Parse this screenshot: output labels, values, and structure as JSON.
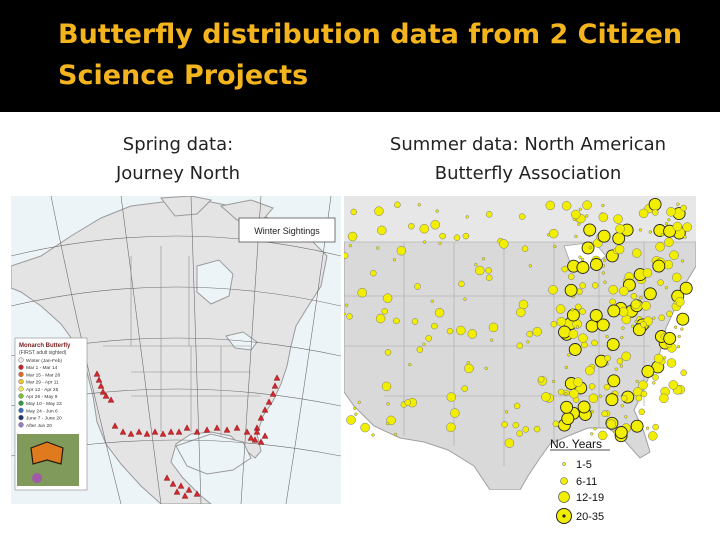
{
  "slide": {
    "title": "Butterfly distribution data from 2 Citizen Science Projects",
    "subtitle_left": "Spring data:\nJourney North",
    "subtitle_right": "Summer data: North American Butterfly Association"
  },
  "spring_map": {
    "callout": "Winter Sightings",
    "legend_title_main": "Monarch Butterfly",
    "legend_title_sub": "(FIRST adult sighted)",
    "legend_items": [
      {
        "label": "Winter (Jan-Feb)",
        "color": "#e8e8e8"
      },
      {
        "label": "Mar 1 - Mar 14",
        "color": "#c0282d"
      },
      {
        "label": "Mar 15 - Mar 28",
        "color": "#e06a2a"
      },
      {
        "label": "Mar 29 - Apr 11",
        "color": "#f2c230"
      },
      {
        "label": "Apr 12 - Apr 25",
        "color": "#f5e35a"
      },
      {
        "label": "Apr 26 - May 9",
        "color": "#7bbf3f"
      },
      {
        "label": "May 10 - May 23",
        "color": "#2e9a46"
      },
      {
        "label": "May 24 - Jun 6",
        "color": "#3a6fc4"
      },
      {
        "label": "June 7 - June 20",
        "color": "#23356e"
      },
      {
        "label": "After Jun 20",
        "color": "#9a7cc2"
      }
    ],
    "marker_color": "#d0262e"
  },
  "summer_map": {
    "legend_title": "No. Years",
    "legend_items": [
      {
        "label": "1-5"
      },
      {
        "label": "6-11"
      },
      {
        "label": "12-19"
      },
      {
        "label": "20-35"
      }
    ],
    "marker_color": "#f2ee00"
  },
  "colors": {
    "title": "#f3b41d",
    "title_bar": "#000000"
  }
}
